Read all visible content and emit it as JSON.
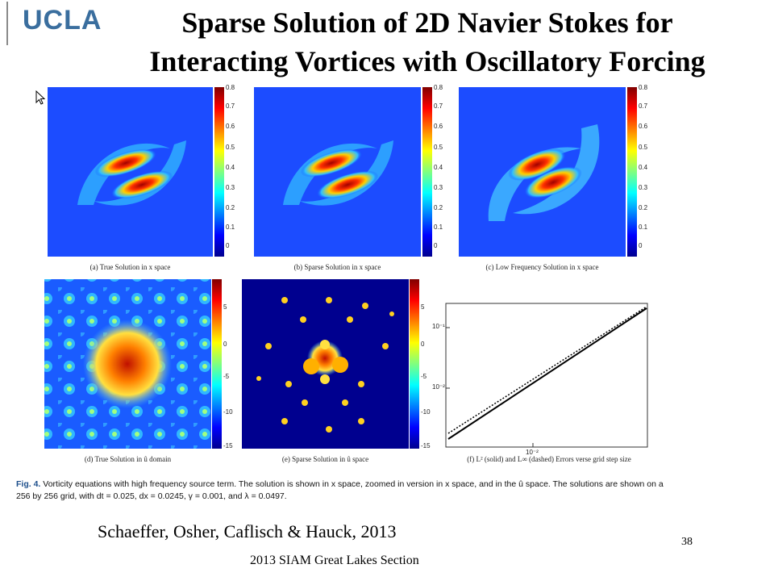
{
  "header": {
    "logo_text": "UCLA",
    "title_line1": "Sparse Solution of 2D Navier Stokes for",
    "title_line2": "Interacting Vortices with Oscillatory Forcing"
  },
  "figure": {
    "panels": [
      {
        "caption": "(a) True Solution in x space",
        "colorbar_ticks": [
          "0.8",
          "0.7",
          "0.6",
          "0.5",
          "0.4",
          "0.3",
          "0.2",
          "0.1",
          "0"
        ]
      },
      {
        "caption": "(b) Sparse Solution in x space",
        "colorbar_ticks": [
          "0.8",
          "0.7",
          "0.6",
          "0.5",
          "0.4",
          "0.3",
          "0.2",
          "0.1",
          "0"
        ]
      },
      {
        "caption": "(c) Low Frequency Solution in x space",
        "colorbar_ticks": [
          "0.8",
          "0.7",
          "0.6",
          "0.5",
          "0.4",
          "0.3",
          "0.2",
          "0.1",
          "0"
        ]
      },
      {
        "caption": "(d) True Solution in û domain",
        "colorbar_ticks": [
          "5",
          "0",
          "-5",
          "-10",
          "-15"
        ]
      },
      {
        "caption": "(e) Sparse Solution in û space",
        "colorbar_ticks": [
          "5",
          "0",
          "-5",
          "-10",
          "-15"
        ]
      },
      {
        "caption": "(f) L² (solid) and L∞ (dashed) Errors verse grid step size",
        "y_ticks": [
          "10⁻¹",
          "10⁻²"
        ],
        "x_tick": "10⁻²"
      }
    ],
    "caption_label": "Fig. 4.",
    "caption_text": "Vorticity equations with high frequency source term. The solution is shown in x space, zoomed in version in x space, and in the û space. The solutions are shown on a 256 by 256 grid, with dt = 0.025, dx = 0.0245, γ = 0.001, and λ = 0.0497."
  },
  "footer": {
    "citation": "Schaeffer, Osher, Caflisch & Hauck, 2013",
    "page_number": "38",
    "event": "2013 SIAM Great Lakes Section"
  }
}
